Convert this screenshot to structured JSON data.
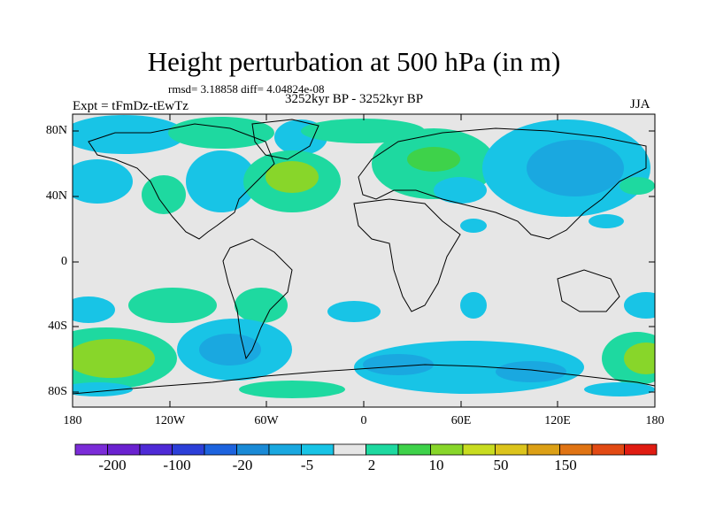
{
  "title": "Height perturbation at 500 hPa (in m)",
  "stats": "rmsd= 3.18858 diff= 4.04824e-08",
  "experiment": "Expt = tFmDz-tEwTz",
  "period": "3252kyr BP - 3252kyr BP",
  "season": "JJA",
  "lat_ticks": [
    "80N",
    "40N",
    "0",
    "40S",
    "80S"
  ],
  "lon_ticks": [
    "180",
    "120W",
    "60W",
    "0",
    "60E",
    "120E",
    "180"
  ],
  "colorbar": {
    "labels": [
      "-200",
      "-100",
      "-20",
      "-5",
      "2",
      "10",
      "50",
      "150"
    ],
    "colors": [
      "#7b2cd8",
      "#6a22d0",
      "#4e2ad6",
      "#2c3fd8",
      "#1d63de",
      "#1a8ad6",
      "#1aa8e0",
      "#18c4e6",
      "#e6e6e6",
      "#1ed9a0",
      "#3ed24a",
      "#88d62a",
      "#c8dc20",
      "#dcc41c",
      "#dca016",
      "#e07414",
      "#e24a14",
      "#e01c12"
    ]
  },
  "colors": {
    "ocean": "#e6e6e6",
    "neg_light": "#18c4e6",
    "neg_mid": "#1aa8e0",
    "pos_light": "#1ed9a0",
    "pos_mid": "#3ed24a",
    "pos_strong": "#88d62a"
  }
}
